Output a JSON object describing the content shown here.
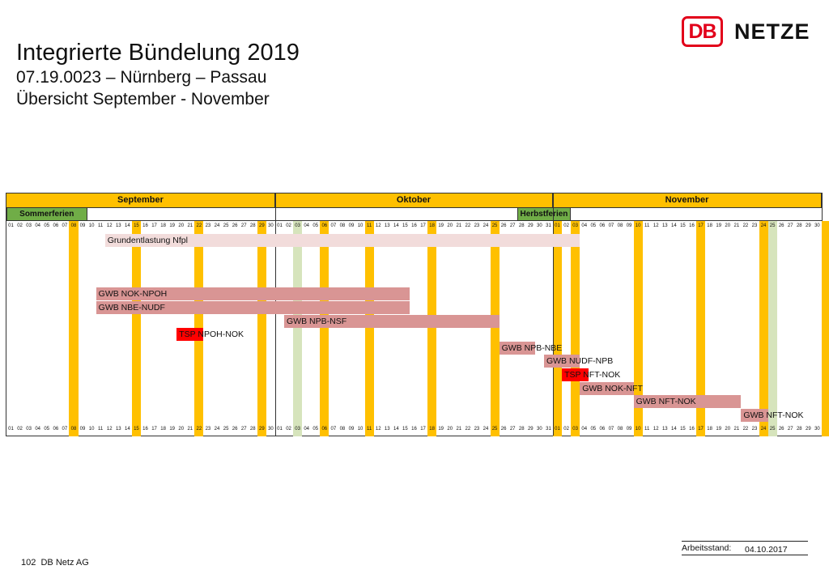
{
  "header": {
    "title": "Integrierte Bündelung 2019",
    "route": "07.19.0023 – Nürnberg – Passau",
    "subtitle": "Übersicht September - November"
  },
  "logo": {
    "db": "DB",
    "netze": "NETZE"
  },
  "calendar": {
    "months": [
      {
        "label": "September",
        "days": 30
      },
      {
        "label": "Oktober",
        "days": 31
      },
      {
        "label": "November",
        "days": 30
      }
    ],
    "holidays": [
      {
        "label": "Sommerferien",
        "start_day": 1,
        "end_day": 9
      },
      {
        "label": "Herbstferien",
        "start_day": 58,
        "end_day": 63
      }
    ],
    "weekend_highlights": [
      8,
      15,
      22,
      29,
      36,
      41,
      48,
      55,
      62,
      64,
      71,
      78,
      85,
      92
    ],
    "public_holidays": [
      33,
      62,
      85,
      86
    ],
    "bars": [
      {
        "label": "Grundentlastung Nfpl",
        "start": 12,
        "end": 64,
        "row": 0,
        "type": "light"
      },
      {
        "label": "GWB NOK-NPOH",
        "start": 11,
        "end": 45,
        "row": 4,
        "type": "gwb"
      },
      {
        "label": "GWB NBE-NUDF",
        "start": 11,
        "end": 45,
        "row": 5,
        "type": "gwb"
      },
      {
        "label": "GWB NPB-NSF",
        "start": 32,
        "end": 55,
        "row": 6,
        "type": "gwb"
      },
      {
        "label": "TSP NPOH-NOK",
        "start": 20,
        "end": 22,
        "row": 7,
        "type": "tsp"
      },
      {
        "label": "GWB NPB-NBE",
        "start": 56,
        "end": 59,
        "row": 8,
        "type": "gwb"
      },
      {
        "label": "GWB NUDF-NPB",
        "start": 61,
        "end": 64,
        "row": 9,
        "type": "gwb"
      },
      {
        "label": "TSP NFT-NOK",
        "start": 63,
        "end": 65,
        "row": 10,
        "type": "tsp"
      },
      {
        "label": "GWB NOK-NFT",
        "start": 65,
        "end": 70,
        "row": 11,
        "type": "gwb"
      },
      {
        "label": "GWB NFT-NOK",
        "start": 71,
        "end": 82,
        "row": 12,
        "type": "gwb"
      },
      {
        "label": "GWB NFT-NOK",
        "start": 83,
        "end": 85,
        "row": 13,
        "type": "gwb"
      }
    ],
    "colors": {
      "month_header": "#ffc000",
      "weekend": "#ffc000",
      "holiday_col": "#d6e4bc",
      "gwb": "#d99594",
      "light": "#f2dcdb",
      "tsp": "#ff0000",
      "ferien": "#70ad47"
    }
  },
  "footer": {
    "page": "102",
    "company": "DB Netz AG",
    "stand_label": "Arbeitsstand:",
    "stand_value": "04.10.2017"
  }
}
